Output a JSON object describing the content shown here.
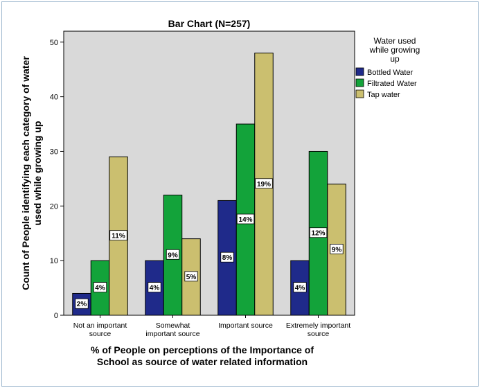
{
  "chart_data": {
    "type": "bar",
    "title": "Bar Chart (N=257)",
    "xlabel_lines": [
      "% of People on perceptions of the Importance of",
      "School as source of water related information"
    ],
    "ylabel_lines": [
      "Count of People identifying each category of water",
      "used while growing up"
    ],
    "ylim": [
      0,
      52
    ],
    "yticks": [
      0,
      10,
      20,
      30,
      40,
      50
    ],
    "categories": [
      [
        "Not an important",
        "source"
      ],
      [
        "Somewhat",
        "important source"
      ],
      [
        "Important source"
      ],
      [
        "Extremely important",
        "source"
      ]
    ],
    "legend": {
      "title_lines": [
        "Water used",
        "while growing",
        "up"
      ],
      "placement": "right"
    },
    "series": [
      {
        "name": "Bottled Water",
        "color": "#1f2a8a",
        "values": [
          4,
          10,
          21,
          10
        ],
        "labels": [
          "2%",
          "4%",
          "8%",
          "4%"
        ]
      },
      {
        "name": "Filtrated Water",
        "color": "#13a33a",
        "values": [
          10,
          22,
          35,
          30
        ],
        "labels": [
          "4%",
          "9%",
          "14%",
          "12%"
        ]
      },
      {
        "name": "Tap water",
        "color": "#cbbf6f",
        "values": [
          29,
          14,
          48,
          24
        ],
        "labels": [
          "11%",
          "5%",
          "19%",
          "9%"
        ]
      }
    ],
    "plot_background": "#d9d9d9",
    "grid": false
  }
}
